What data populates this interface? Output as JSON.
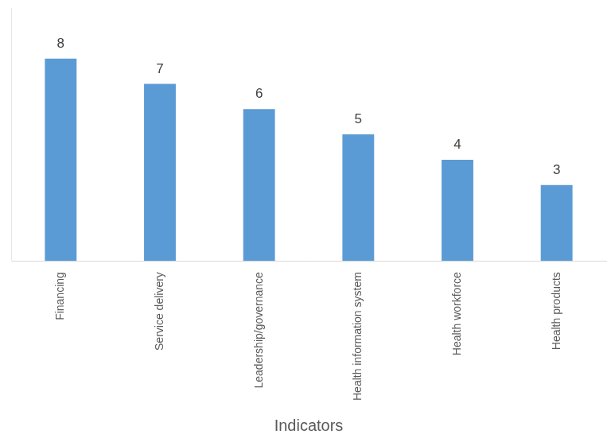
{
  "chart_data": {
    "type": "bar",
    "x_label": "Indicators",
    "categories": [
      "Financing",
      "Service delivery",
      "Leadership/governance",
      "Health information system",
      "Health workforce",
      "Health products"
    ],
    "values": [
      8,
      7,
      6,
      5,
      4,
      3
    ],
    "color": "#5b9bd5",
    "ylim": [
      0,
      10
    ],
    "grid": false,
    "data_labels": true,
    "tick_labels": "x"
  }
}
